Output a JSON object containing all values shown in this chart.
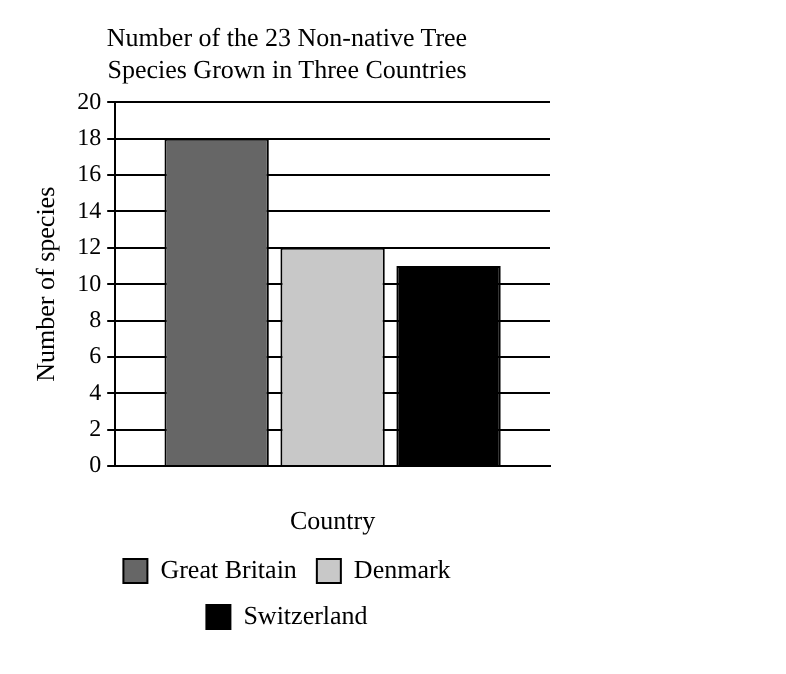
{
  "chart_data": {
    "type": "bar",
    "title": "Number of the 23 Non-native Tree Species Grown in Three Countries",
    "xlabel": "Country",
    "ylabel": "Number of species",
    "categories": [
      null
    ],
    "series": [
      {
        "name": "Great Britain",
        "color": "#666666",
        "values": [
          18
        ]
      },
      {
        "name": "Denmark",
        "color": "#c8c8c8",
        "values": [
          12
        ]
      },
      {
        "name": "Switzerland",
        "color": "#000000",
        "values": [
          11
        ]
      }
    ],
    "ylim": [
      0,
      20
    ],
    "yticks": [
      0,
      2,
      4,
      6,
      8,
      10,
      12,
      14,
      16,
      18,
      20
    ],
    "grid": "y",
    "legend": "bottom"
  }
}
